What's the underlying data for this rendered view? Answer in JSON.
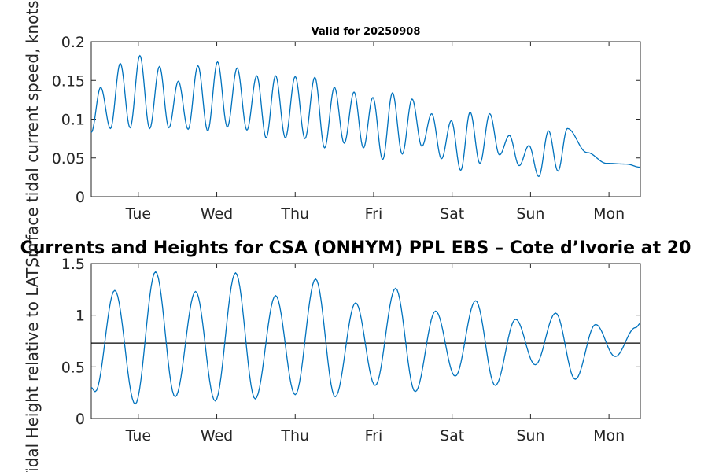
{
  "chart_data": [
    {
      "type": "line",
      "title": "Valid for 20250908",
      "ylabel": "Surface tidal current speed, knots",
      "xlabel": "",
      "xlim": [
        0.4,
        7.4
      ],
      "ylim": [
        0,
        0.2
      ],
      "x_ticks": [
        1,
        2,
        3,
        4,
        5,
        6,
        7
      ],
      "x_tick_labels": [
        "Tue",
        "Wed",
        "Thu",
        "Fri",
        "Sat",
        "Sun",
        "Mon"
      ],
      "y_ticks": [
        0,
        0.05,
        0.1,
        0.15,
        0.2
      ],
      "y_tick_labels": [
        "0",
        "0.05",
        "0.1",
        "0.15",
        "0.2"
      ],
      "grid": false,
      "line_color": "#0072BD",
      "series": [
        {
          "x": [
            0.4,
            0.52,
            0.77,
            1.02,
            1.27,
            1.51,
            1.76,
            2.01,
            2.26,
            2.51,
            2.75,
            3.0,
            3.25,
            3.5,
            3.75,
            3.99,
            4.24,
            4.49,
            4.74,
            4.99,
            5.23,
            5.48,
            5.73,
            5.98,
            6.23,
            6.47,
            6.72,
            6.97,
            7.22,
            7.4
          ],
          "y": [
            0.083,
            0.141,
            0.172,
            0.182,
            0.168,
            0.149,
            0.169,
            0.174,
            0.166,
            0.156,
            0.156,
            0.155,
            0.154,
            0.141,
            0.135,
            0.128,
            0.134,
            0.126,
            0.107,
            0.098,
            0.109,
            0.107,
            0.079,
            0.066,
            0.085,
            0.088,
            0.057,
            0.043,
            0.042,
            0.038
          ],
          "troughs_y": [
            0.088,
            0.089,
            0.088,
            0.089,
            0.087,
            0.085,
            0.09,
            0.086,
            0.076,
            0.076,
            0.075,
            0.063,
            0.069,
            0.063,
            0.048,
            0.055,
            0.065,
            0.049,
            0.034,
            0.043,
            0.054,
            0.04,
            0.026,
            0.033
          ]
        }
      ]
    },
    {
      "type": "line",
      "title": "Currents and Heights for CSA (ONHYM) PPL EBS  – Cote d’Ivorie at 20",
      "ylabel": "Tidal Height relative to LAT, m",
      "xlabel": "",
      "xlim": [
        0.4,
        7.4
      ],
      "ylim": [
        0,
        1.5
      ],
      "x_ticks": [
        1,
        2,
        3,
        4,
        5,
        6,
        7
      ],
      "x_tick_labels": [
        "Tue",
        "Wed",
        "Thu",
        "Fri",
        "Sat",
        "Sun",
        "Mon"
      ],
      "y_ticks": [
        0,
        0.5,
        1,
        1.5
      ],
      "y_tick_labels": [
        "0",
        "0.5",
        "1",
        "1.5"
      ],
      "grid": false,
      "line_color": "#0072BD",
      "reference_line": {
        "y": 0.73,
        "color": "#000000"
      },
      "series": [
        {
          "x": [
            0.4,
            0.45,
            0.7,
            0.96,
            1.22,
            1.47,
            1.73,
            1.98,
            2.24,
            2.49,
            2.75,
            3.0,
            3.26,
            3.51,
            3.77,
            4.02,
            4.28,
            4.53,
            4.79,
            5.04,
            5.3,
            5.55,
            5.81,
            6.06,
            6.32,
            6.57,
            6.83,
            7.08,
            7.34,
            7.4
          ],
          "y": [
            0.3,
            0.26,
            1.24,
            0.14,
            1.42,
            0.21,
            1.23,
            0.17,
            1.41,
            0.19,
            1.19,
            0.23,
            1.35,
            0.21,
            1.12,
            0.32,
            1.26,
            0.26,
            1.04,
            0.41,
            1.14,
            0.32,
            0.96,
            0.52,
            1.02,
            0.38,
            0.91,
            0.6,
            0.88,
            0.92
          ]
        }
      ]
    }
  ]
}
